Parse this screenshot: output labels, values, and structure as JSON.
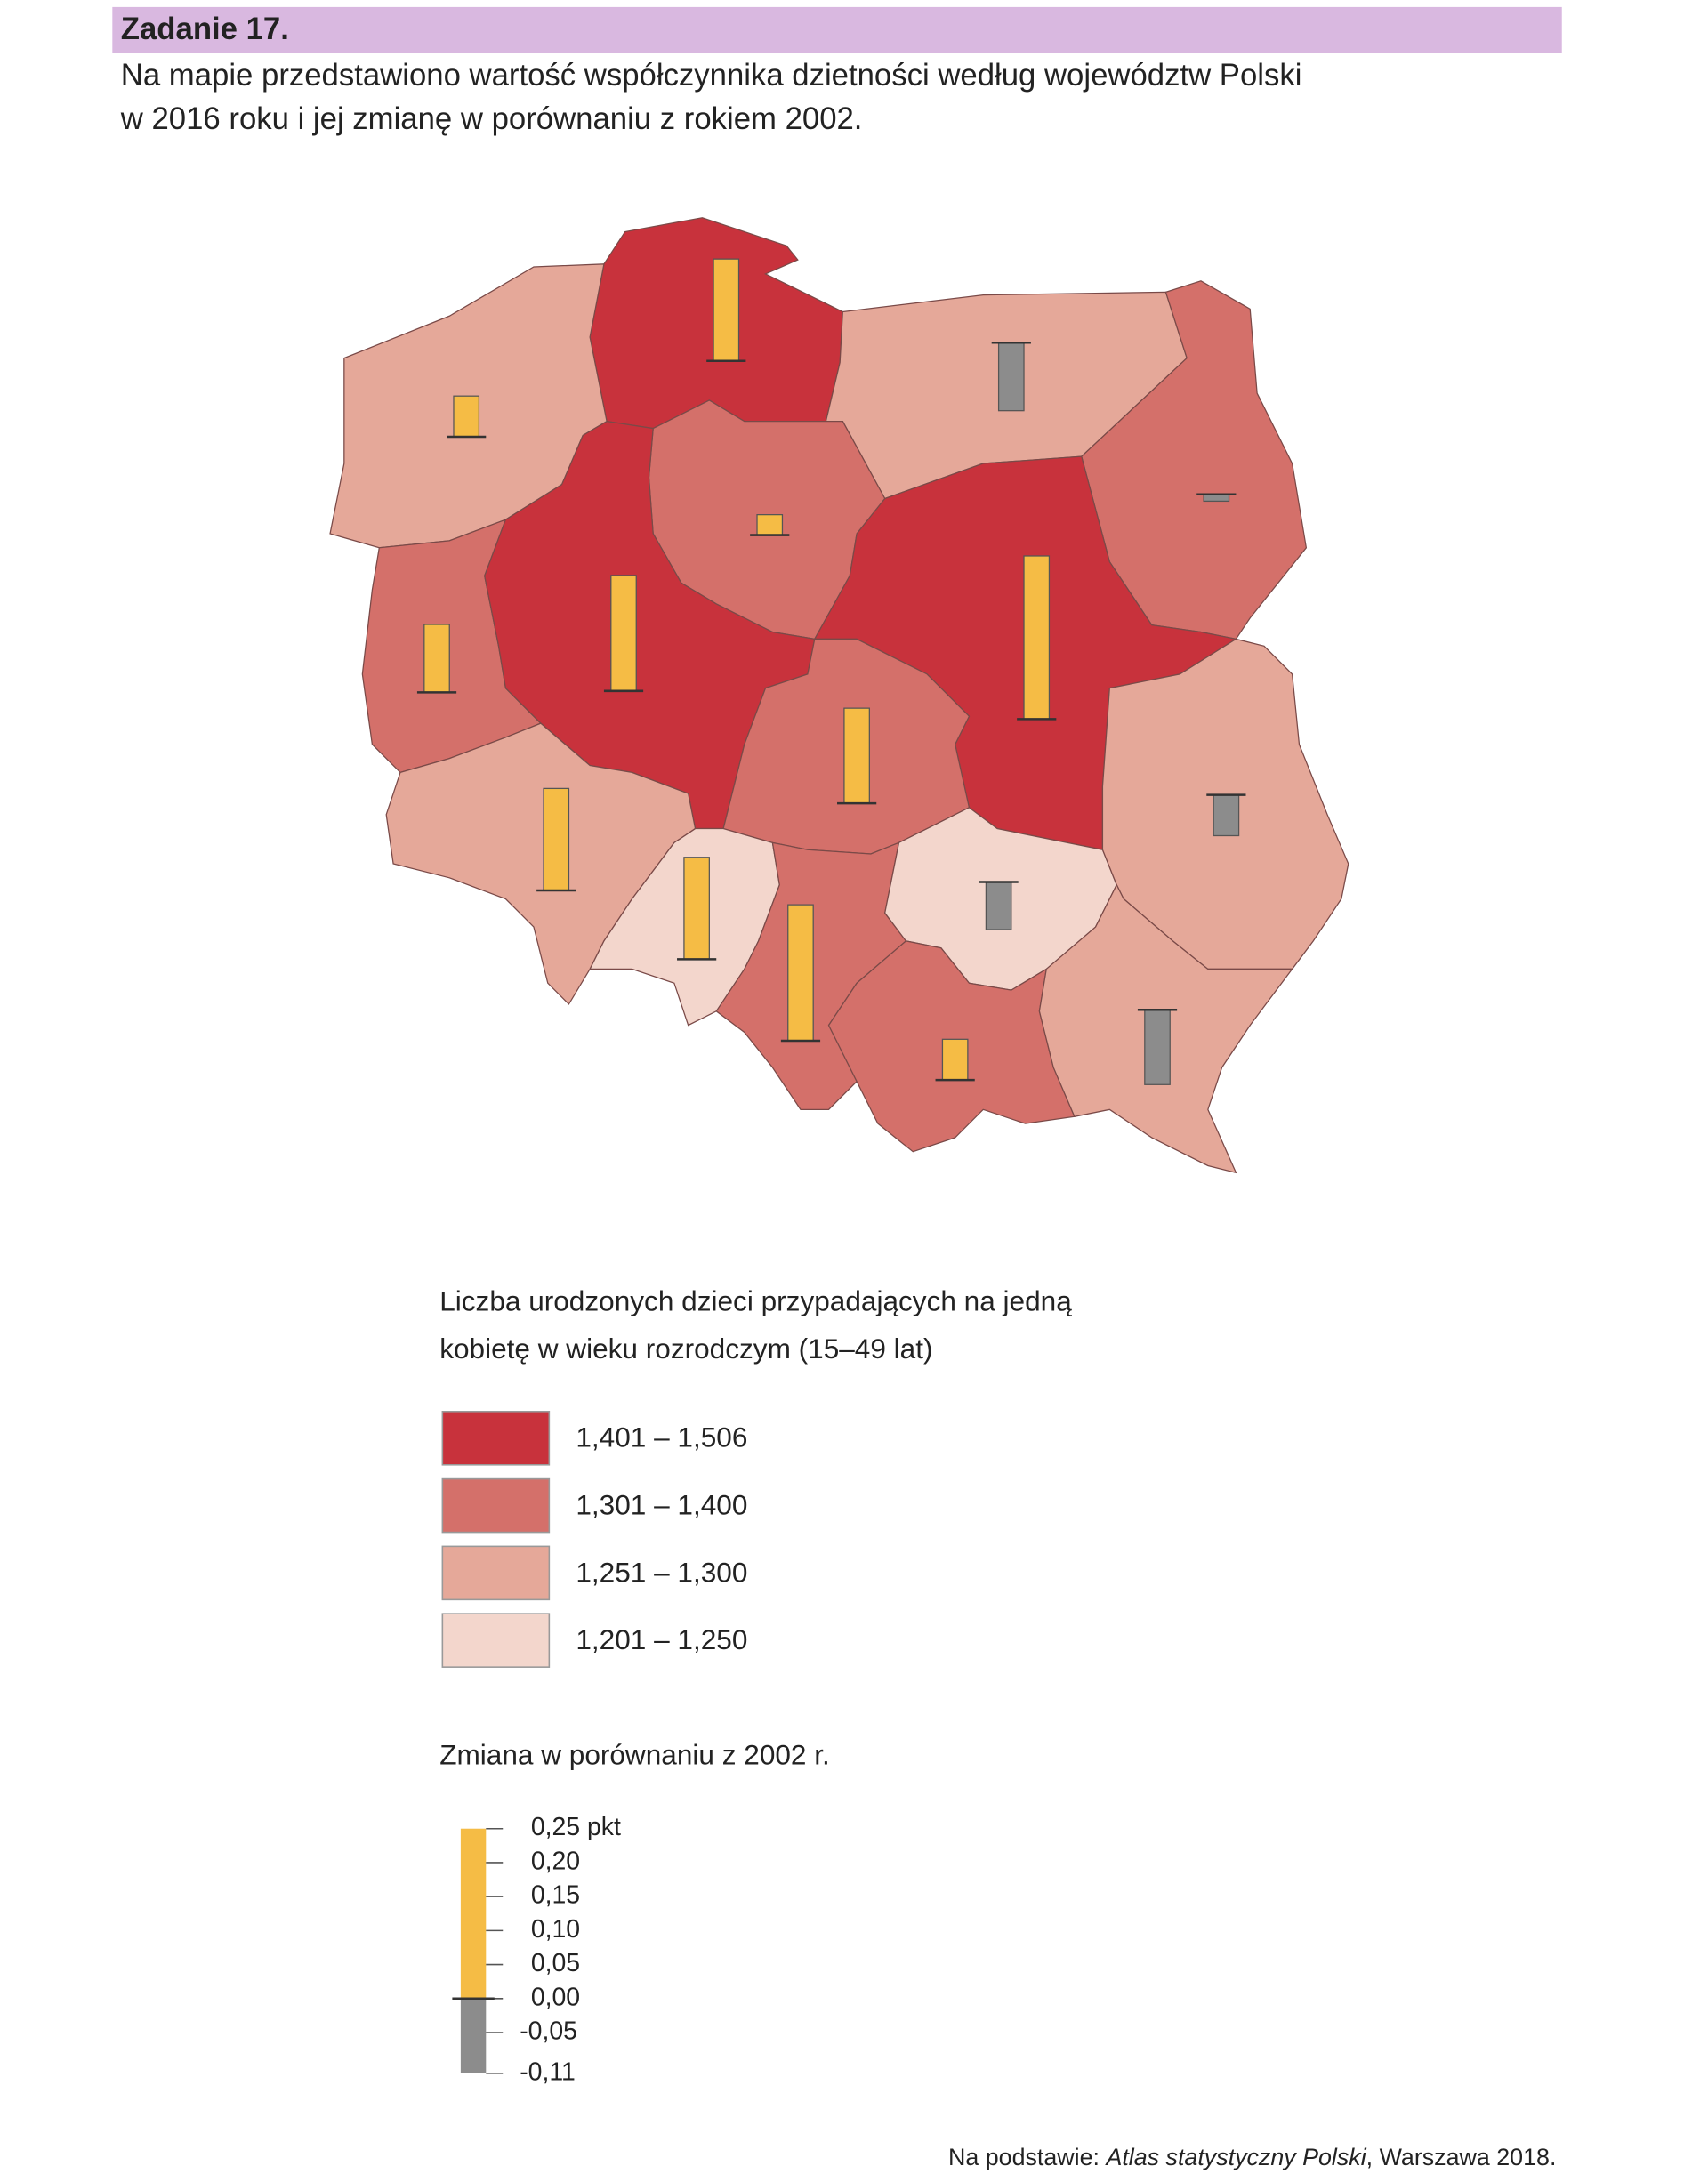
{
  "header": {
    "title": "Zadanie 17.",
    "lines": [
      "Na mapie przedstawiono wartość współczynnika dzietności według województw Polski",
      "w 2016 roku i jej zmianę w porównaniu z rokiem 2002."
    ]
  },
  "regions": [
    {
      "color": "#c8323c",
      "change": 0.15
    },
    {
      "color": "#e5a899",
      "change": 0.06
    },
    {
      "color": "#e5a899",
      "change": -0.1
    },
    {
      "color": "#d4706a",
      "change": 0.03
    },
    {
      "color": "#d4706a",
      "change": -0.01
    },
    {
      "color": "#d4706a",
      "change": 0.1
    },
    {
      "color": "#c8323c",
      "change": 0.17
    },
    {
      "color": "#c8323c",
      "change": 0.24
    },
    {
      "color": "#d4706a",
      "change": 0.14
    },
    {
      "color": "#e5a899",
      "change": 0.15
    },
    {
      "color": "#f3d6cc",
      "change": 0.15
    },
    {
      "color": "#d4706a",
      "change": 0.2
    },
    {
      "color": "#f3d6cc",
      "change": -0.07
    },
    {
      "color": "#e5a899",
      "change": -0.06
    },
    {
      "color": "#d4706a",
      "change": 0.06
    },
    {
      "color": "#e5a899",
      "change": -0.11
    }
  ],
  "legend": {
    "classes_title": [
      "Liczba urodzonych dzieci przypadających na jedną",
      "kobietę w wieku rozrodczym (15–49 lat)"
    ],
    "classes": [
      {
        "label": "1,401 – 1,506",
        "color": "#c8323c"
      },
      {
        "label": "1,301 – 1,400",
        "color": "#d4706a"
      },
      {
        "label": "1,251 – 1,300",
        "color": "#e5a899"
      },
      {
        "label": "1,201 – 1,250",
        "color": "#f3d6cc"
      }
    ],
    "change_title": "Zmiana w porównaniu z 2002 r.",
    "change_lim": [
      -0.11,
      0.25
    ],
    "change_ticks": [
      {
        "value": 0.25,
        "label": "0,25 pkt"
      },
      {
        "value": 0.2,
        "label": "0,20"
      },
      {
        "value": 0.15,
        "label": "0,15"
      },
      {
        "value": 0.1,
        "label": "0,10"
      },
      {
        "value": 0.05,
        "label": "0,05"
      },
      {
        "value": 0,
        "label": "0,00"
      },
      {
        "value": -0.05,
        "label": "-0,05"
      },
      {
        "value": -0.11,
        "label": "-0,11"
      }
    ],
    "positive_color": "#f5bc45",
    "negative_color": "#8c8c8c"
  },
  "source": {
    "prefix": "Na podstawie: ",
    "title": "Atlas statystyczny Polski",
    "suffix": ", Warszawa 2018."
  }
}
